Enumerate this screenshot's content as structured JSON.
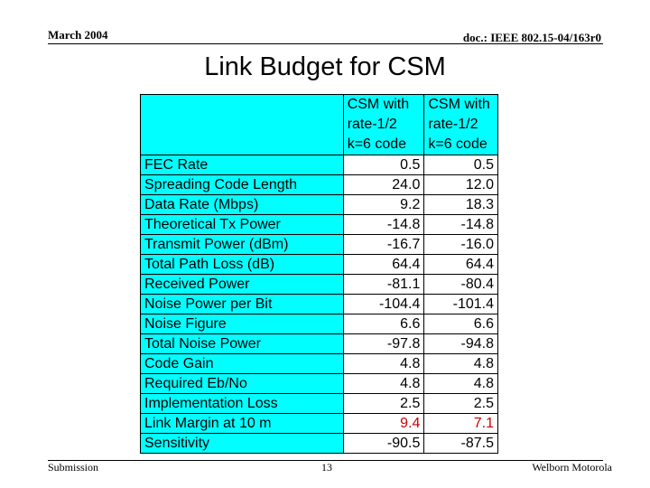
{
  "header": {
    "date": "March 2004",
    "doc_id": "doc.: IEEE 802.15-04/163r0"
  },
  "slide": {
    "title": "Link Budget for CSM"
  },
  "table": {
    "columns": [
      {
        "lines": [
          "CSM with",
          "rate-1/2",
          "k=6 code"
        ]
      },
      {
        "lines": [
          "CSM with",
          "rate-1/2",
          "k=6 code"
        ]
      }
    ],
    "rows": [
      {
        "label": "FEC Rate",
        "v1": "0.5",
        "v2": "0.5"
      },
      {
        "label": "Spreading Code Length",
        "v1": "24.0",
        "v2": "12.0"
      },
      {
        "label": "Data Rate (Mbps)",
        "v1": "9.2",
        "v2": "18.3"
      },
      {
        "label": "Theoretical Tx Power",
        "v1": "-14.8",
        "v2": "-14.8"
      },
      {
        "label": "Transmit Power (dBm)",
        "v1": "-16.7",
        "v2": "-16.0"
      },
      {
        "label": "Total Path Loss (dB)",
        "v1": "64.4",
        "v2": "64.4"
      },
      {
        "label": "Received Power",
        "v1": "-81.1",
        "v2": "-80.4"
      },
      {
        "label": "Noise Power per Bit",
        "v1": "-104.4",
        "v2": "-101.4"
      },
      {
        "label": "Noise Figure",
        "v1": "6.6",
        "v2": "6.6"
      },
      {
        "label": "Total Noise Power",
        "v1": "-97.8",
        "v2": "-94.8"
      },
      {
        "label": "Code Gain",
        "v1": "4.8",
        "v2": "4.8"
      },
      {
        "label": "Required Eb/No",
        "v1": "4.8",
        "v2": "4.8"
      },
      {
        "label": "Implementation Loss",
        "v1": "2.5",
        "v2": "2.5"
      },
      {
        "label": "Link Margin at 10 m",
        "v1": "9.4",
        "v2": "7.1"
      },
      {
        "label": "Sensitivity",
        "v1": "-90.5",
        "v2": "-87.5"
      }
    ]
  },
  "colors": {
    "label_background": "#00ffff",
    "highlight_text": "#cc0000"
  },
  "footer": {
    "left": "Submission",
    "page": "13",
    "right": "Welborn Motorola"
  }
}
